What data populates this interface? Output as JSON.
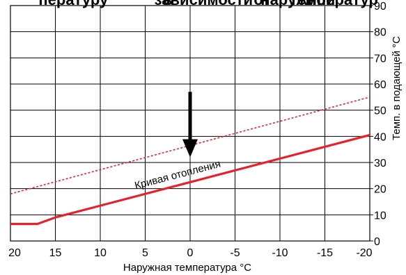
{
  "chart_data": {
    "type": "line",
    "title": "",
    "xlabel": "Наружная температура  °C",
    "ylabel": "Темп. в подающей °C",
    "xlim": [
      20,
      -20
    ],
    "ylim": [
      0,
      90
    ],
    "xticks": [
      "20",
      "15",
      "10",
      "5",
      "0",
      "-5",
      "-10",
      "-15",
      "-20"
    ],
    "yticks": [
      "0",
      "10",
      "20",
      "30",
      "40",
      "50",
      "60",
      "70",
      "80",
      "90"
    ],
    "grid": true,
    "series": [
      {
        "name": "Кривая отопления",
        "style": "solid",
        "color": "#e8202a",
        "points": [
          [
            20,
            6.5
          ],
          [
            17,
            6.5
          ],
          [
            15,
            9
          ],
          [
            0,
            22.5
          ],
          [
            -20,
            40.5
          ]
        ]
      },
      {
        "name": "",
        "style": "dashed",
        "color": "#e8202a",
        "points": [
          [
            20,
            18
          ],
          [
            -20,
            55
          ]
        ]
      }
    ],
    "annotations": [
      {
        "type": "arrow",
        "x": 0,
        "y_from": 57,
        "y_to": 32,
        "direction": "down"
      }
    ]
  },
  "title_fragments": [
    {
      "text": "пературу",
      "x_data": 13
    },
    {
      "text": "в",
      "x_data": 2.5
    },
    {
      "text": "зависимости",
      "x_data": -1.5
    },
    {
      "text": "от",
      "x_data": -8
    },
    {
      "text": "наружной",
      "x_data": -12
    },
    {
      "text": "температур",
      "x_data": -16
    }
  ],
  "curve_label": "Кривая отопления"
}
